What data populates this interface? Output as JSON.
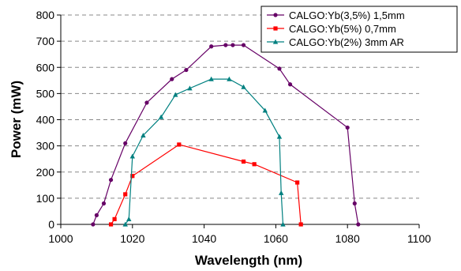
{
  "chart_data": {
    "type": "line",
    "title": "",
    "xlabel": "Wavelength (nm)",
    "ylabel": "Power (mW)",
    "xlim": [
      1000,
      1100
    ],
    "ylim": [
      0,
      800
    ],
    "xticks": [
      1000,
      1020,
      1040,
      1060,
      1080,
      1100
    ],
    "yticks": [
      0,
      100,
      200,
      300,
      400,
      500,
      600,
      700,
      800
    ],
    "grid": "horizontal dashed",
    "legend_position": "top-right",
    "series": [
      {
        "name": "CALGO:Yb(3,5%) 1,5mm",
        "color": "#660066",
        "marker": "circle",
        "x": [
          1009,
          1010,
          1012,
          1014,
          1018,
          1024,
          1031,
          1035,
          1042,
          1046,
          1048,
          1051,
          1061,
          1064,
          1080,
          1082,
          1083
        ],
        "y": [
          0,
          35,
          80,
          170,
          310,
          465,
          555,
          590,
          680,
          685,
          685,
          685,
          595,
          535,
          370,
          80,
          0
        ]
      },
      {
        "name": "CALGO:Yb(5%) 0,7mm",
        "color": "#ff0000",
        "marker": "square",
        "x": [
          1014,
          1015,
          1018,
          1020,
          1033,
          1051,
          1054,
          1066,
          1067
        ],
        "y": [
          0,
          20,
          115,
          185,
          305,
          240,
          230,
          160,
          0
        ]
      },
      {
        "name": "CALGO:Yb(2%) 3mm AR",
        "color": "#008080",
        "marker": "triangle",
        "x": [
          1018,
          1019,
          1020,
          1023,
          1028,
          1032,
          1036,
          1042,
          1047,
          1051,
          1057,
          1061,
          1061.5,
          1062
        ],
        "y": [
          0,
          20,
          260,
          340,
          410,
          495,
          520,
          555,
          555,
          525,
          435,
          335,
          120,
          0
        ]
      }
    ]
  }
}
